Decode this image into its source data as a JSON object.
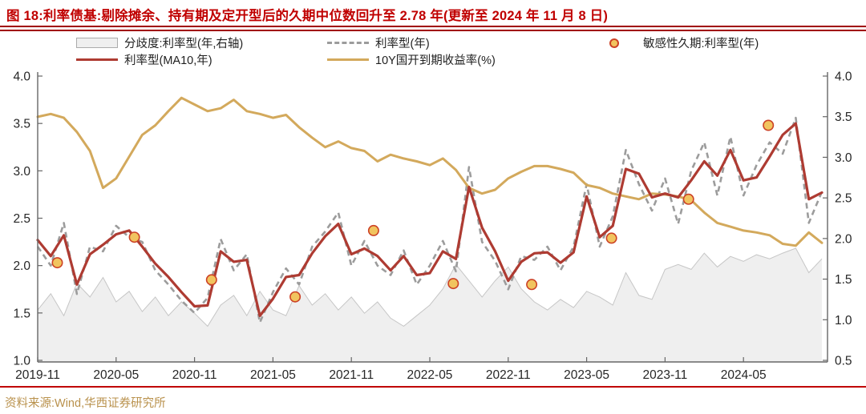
{
  "title": "图 18:利率债基:剔除摊余、持有期及定开型后的久期中位数回升至 2.78 年(更新至 2024 年 11 月 8 日)",
  "source": "资料来源:Wind,华西证券研究所",
  "colors": {
    "title_red": "#c00000",
    "divider_red": "#a00000",
    "source_gold": "#b9914c",
    "area_fill": "#efefef",
    "area_edge": "#c6c6c6",
    "dashed_gray": "#9c9c9c",
    "ma10_red": "#ae3b32",
    "yield_gold": "#d3a95c",
    "dot_fill": "#f1c45f",
    "dot_edge": "#cc4125",
    "axis_gray": "#666666",
    "tick_text": "#262626"
  },
  "legend": {
    "area_label": "分歧度:利率型(年,右轴)",
    "median_label": "利率型(年)",
    "ma10_label": "利率型(MA10,年)",
    "yield_label": "10Y国开到期收益率(%)",
    "dot_label": "敏感性久期:利率型(年)"
  },
  "chart_data": {
    "type": "line",
    "title": "利率债基久期中位数与10Y国开收益率",
    "x_start_month": "2019-11",
    "x_months_span": 61,
    "x_tick_months": [
      0,
      6,
      12,
      18,
      24,
      30,
      36,
      42,
      48,
      54
    ],
    "x_tick_labels": [
      "2019-11",
      "2020-05",
      "2020-11",
      "2021-05",
      "2021-11",
      "2022-05",
      "2022-11",
      "2023-05",
      "2023-11",
      "2024-05"
    ],
    "left_axis": {
      "range": [
        1.0,
        4.0
      ],
      "ticks": [
        "4.0",
        "3.5",
        "3.0",
        "2.5",
        "2.0",
        "1.5",
        "1.0"
      ]
    },
    "right_axis": {
      "range": [
        0.5,
        4.0
      ],
      "ticks": [
        "4.0",
        "3.5",
        "3.0",
        "2.5",
        "2.0",
        "1.5",
        "1.0",
        "0.5"
      ]
    },
    "grid": false,
    "legend_position": "top",
    "series": [
      {
        "name": "分歧度:利率型(年,右轴)",
        "type": "area",
        "axis": "right",
        "values": [
          1.12,
          1.32,
          1.05,
          1.45,
          1.28,
          1.52,
          1.22,
          1.35,
          1.1,
          1.28,
          1.05,
          1.22,
          1.08,
          0.92,
          1.18,
          1.3,
          1.05,
          1.35,
          1.12,
          1.05,
          1.42,
          1.18,
          1.32,
          1.12,
          1.28,
          1.08,
          1.22,
          1.02,
          0.92,
          1.05,
          1.18,
          1.38,
          1.68,
          1.48,
          1.28,
          1.48,
          1.65,
          1.38,
          1.22,
          1.12,
          1.25,
          1.15,
          1.35,
          1.28,
          1.18,
          1.58,
          1.3,
          1.25,
          1.62,
          1.68,
          1.62,
          1.82,
          1.65,
          1.78,
          1.72,
          1.8,
          1.75,
          1.82,
          1.88,
          1.58,
          1.75
        ]
      },
      {
        "name": "利率型(年)",
        "type": "dashed-line",
        "axis": "left",
        "values": [
          2.2,
          2.0,
          2.45,
          1.7,
          2.2,
          2.15,
          2.42,
          2.3,
          2.25,
          1.95,
          1.8,
          1.63,
          1.5,
          1.66,
          2.28,
          1.95,
          2.12,
          1.4,
          1.72,
          1.97,
          1.8,
          2.2,
          2.36,
          2.56,
          2.0,
          2.26,
          2.0,
          1.9,
          2.16,
          1.8,
          2.0,
          2.26,
          1.94,
          3.04,
          2.25,
          2.05,
          1.75,
          2.1,
          2.06,
          2.2,
          1.95,
          2.2,
          2.86,
          2.2,
          2.52,
          3.22,
          2.86,
          2.58,
          2.92,
          2.44,
          3.0,
          3.3,
          2.74,
          3.36,
          2.74,
          3.06,
          3.3,
          3.18,
          3.56,
          2.45,
          2.78
        ]
      },
      {
        "name": "10Y国开到期收益率(%)",
        "type": "line",
        "axis": "left",
        "values": [
          3.57,
          3.6,
          3.56,
          3.41,
          3.21,
          2.82,
          2.92,
          3.15,
          3.38,
          3.48,
          3.63,
          3.77,
          3.7,
          3.63,
          3.66,
          3.75,
          3.63,
          3.6,
          3.56,
          3.59,
          3.46,
          3.35,
          3.25,
          3.31,
          3.24,
          3.21,
          3.1,
          3.17,
          3.13,
          3.1,
          3.06,
          3.13,
          3.01,
          2.82,
          2.76,
          2.8,
          2.92,
          2.99,
          3.05,
          3.05,
          3.02,
          2.98,
          2.85,
          2.82,
          2.76,
          2.73,
          2.7,
          2.76,
          2.75,
          2.73,
          2.69,
          2.56,
          2.45,
          2.41,
          2.37,
          2.35,
          2.32,
          2.23,
          2.21,
          2.35,
          2.24
        ]
      },
      {
        "name": "利率型(MA10,年)",
        "type": "line",
        "axis": "left",
        "values": [
          2.27,
          2.1,
          2.32,
          1.8,
          2.12,
          2.22,
          2.33,
          2.37,
          2.2,
          2.02,
          1.88,
          1.72,
          1.57,
          1.58,
          2.15,
          2.04,
          2.06,
          1.47,
          1.65,
          1.88,
          1.9,
          2.13,
          2.31,
          2.44,
          2.12,
          2.18,
          2.1,
          1.95,
          2.1,
          1.9,
          1.92,
          2.15,
          2.07,
          2.83,
          2.4,
          2.15,
          1.84,
          2.04,
          2.13,
          2.14,
          2.03,
          2.14,
          2.73,
          2.3,
          2.42,
          3.02,
          2.97,
          2.72,
          2.76,
          2.72,
          2.9,
          3.1,
          2.95,
          3.22,
          2.9,
          2.93,
          3.15,
          3.38,
          3.5,
          2.7,
          2.77
        ]
      }
    ],
    "scatter": {
      "name": "敏感性久期:利率型(年)",
      "axis": "left",
      "points": [
        {
          "m": 1.5,
          "v": 2.03
        },
        {
          "m": 7.4,
          "v": 2.3
        },
        {
          "m": 13.3,
          "v": 1.85
        },
        {
          "m": 19.7,
          "v": 1.67
        },
        {
          "m": 25.7,
          "v": 2.37
        },
        {
          "m": 31.8,
          "v": 1.81
        },
        {
          "m": 37.8,
          "v": 1.8
        },
        {
          "m": 43.9,
          "v": 2.29
        },
        {
          "m": 49.8,
          "v": 2.7
        },
        {
          "m": 55.9,
          "v": 3.48
        }
      ]
    }
  }
}
